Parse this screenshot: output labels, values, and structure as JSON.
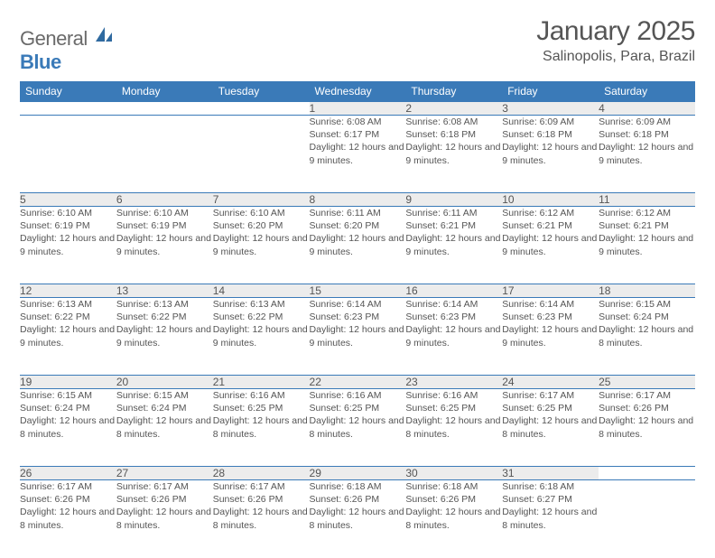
{
  "logo": {
    "text1": "General",
    "text2": "Blue"
  },
  "header": {
    "month_title": "January 2025",
    "location": "Salinopolis, Para, Brazil"
  },
  "colors": {
    "header_bg": "#3a7ab8",
    "header_fg": "#ffffff",
    "daybar_bg": "#ececec",
    "border": "#3a7ab8",
    "text": "#555555",
    "page_bg": "#ffffff"
  },
  "weekdays": [
    "Sunday",
    "Monday",
    "Tuesday",
    "Wednesday",
    "Thursday",
    "Friday",
    "Saturday"
  ],
  "first_weekday_index": 3,
  "days": [
    {
      "n": 1,
      "sunrise": "6:08 AM",
      "sunset": "6:17 PM",
      "daylight": "12 hours and 9 minutes."
    },
    {
      "n": 2,
      "sunrise": "6:08 AM",
      "sunset": "6:18 PM",
      "daylight": "12 hours and 9 minutes."
    },
    {
      "n": 3,
      "sunrise": "6:09 AM",
      "sunset": "6:18 PM",
      "daylight": "12 hours and 9 minutes."
    },
    {
      "n": 4,
      "sunrise": "6:09 AM",
      "sunset": "6:18 PM",
      "daylight": "12 hours and 9 minutes."
    },
    {
      "n": 5,
      "sunrise": "6:10 AM",
      "sunset": "6:19 PM",
      "daylight": "12 hours and 9 minutes."
    },
    {
      "n": 6,
      "sunrise": "6:10 AM",
      "sunset": "6:19 PM",
      "daylight": "12 hours and 9 minutes."
    },
    {
      "n": 7,
      "sunrise": "6:10 AM",
      "sunset": "6:20 PM",
      "daylight": "12 hours and 9 minutes."
    },
    {
      "n": 8,
      "sunrise": "6:11 AM",
      "sunset": "6:20 PM",
      "daylight": "12 hours and 9 minutes."
    },
    {
      "n": 9,
      "sunrise": "6:11 AM",
      "sunset": "6:21 PM",
      "daylight": "12 hours and 9 minutes."
    },
    {
      "n": 10,
      "sunrise": "6:12 AM",
      "sunset": "6:21 PM",
      "daylight": "12 hours and 9 minutes."
    },
    {
      "n": 11,
      "sunrise": "6:12 AM",
      "sunset": "6:21 PM",
      "daylight": "12 hours and 9 minutes."
    },
    {
      "n": 12,
      "sunrise": "6:13 AM",
      "sunset": "6:22 PM",
      "daylight": "12 hours and 9 minutes."
    },
    {
      "n": 13,
      "sunrise": "6:13 AM",
      "sunset": "6:22 PM",
      "daylight": "12 hours and 9 minutes."
    },
    {
      "n": 14,
      "sunrise": "6:13 AM",
      "sunset": "6:22 PM",
      "daylight": "12 hours and 9 minutes."
    },
    {
      "n": 15,
      "sunrise": "6:14 AM",
      "sunset": "6:23 PM",
      "daylight": "12 hours and 9 minutes."
    },
    {
      "n": 16,
      "sunrise": "6:14 AM",
      "sunset": "6:23 PM",
      "daylight": "12 hours and 9 minutes."
    },
    {
      "n": 17,
      "sunrise": "6:14 AM",
      "sunset": "6:23 PM",
      "daylight": "12 hours and 9 minutes."
    },
    {
      "n": 18,
      "sunrise": "6:15 AM",
      "sunset": "6:24 PM",
      "daylight": "12 hours and 8 minutes."
    },
    {
      "n": 19,
      "sunrise": "6:15 AM",
      "sunset": "6:24 PM",
      "daylight": "12 hours and 8 minutes."
    },
    {
      "n": 20,
      "sunrise": "6:15 AM",
      "sunset": "6:24 PM",
      "daylight": "12 hours and 8 minutes."
    },
    {
      "n": 21,
      "sunrise": "6:16 AM",
      "sunset": "6:25 PM",
      "daylight": "12 hours and 8 minutes."
    },
    {
      "n": 22,
      "sunrise": "6:16 AM",
      "sunset": "6:25 PM",
      "daylight": "12 hours and 8 minutes."
    },
    {
      "n": 23,
      "sunrise": "6:16 AM",
      "sunset": "6:25 PM",
      "daylight": "12 hours and 8 minutes."
    },
    {
      "n": 24,
      "sunrise": "6:17 AM",
      "sunset": "6:25 PM",
      "daylight": "12 hours and 8 minutes."
    },
    {
      "n": 25,
      "sunrise": "6:17 AM",
      "sunset": "6:26 PM",
      "daylight": "12 hours and 8 minutes."
    },
    {
      "n": 26,
      "sunrise": "6:17 AM",
      "sunset": "6:26 PM",
      "daylight": "12 hours and 8 minutes."
    },
    {
      "n": 27,
      "sunrise": "6:17 AM",
      "sunset": "6:26 PM",
      "daylight": "12 hours and 8 minutes."
    },
    {
      "n": 28,
      "sunrise": "6:17 AM",
      "sunset": "6:26 PM",
      "daylight": "12 hours and 8 minutes."
    },
    {
      "n": 29,
      "sunrise": "6:18 AM",
      "sunset": "6:26 PM",
      "daylight": "12 hours and 8 minutes."
    },
    {
      "n": 30,
      "sunrise": "6:18 AM",
      "sunset": "6:26 PM",
      "daylight": "12 hours and 8 minutes."
    },
    {
      "n": 31,
      "sunrise": "6:18 AM",
      "sunset": "6:27 PM",
      "daylight": "12 hours and 8 minutes."
    }
  ],
  "labels": {
    "sunrise": "Sunrise:",
    "sunset": "Sunset:",
    "daylight": "Daylight:"
  }
}
